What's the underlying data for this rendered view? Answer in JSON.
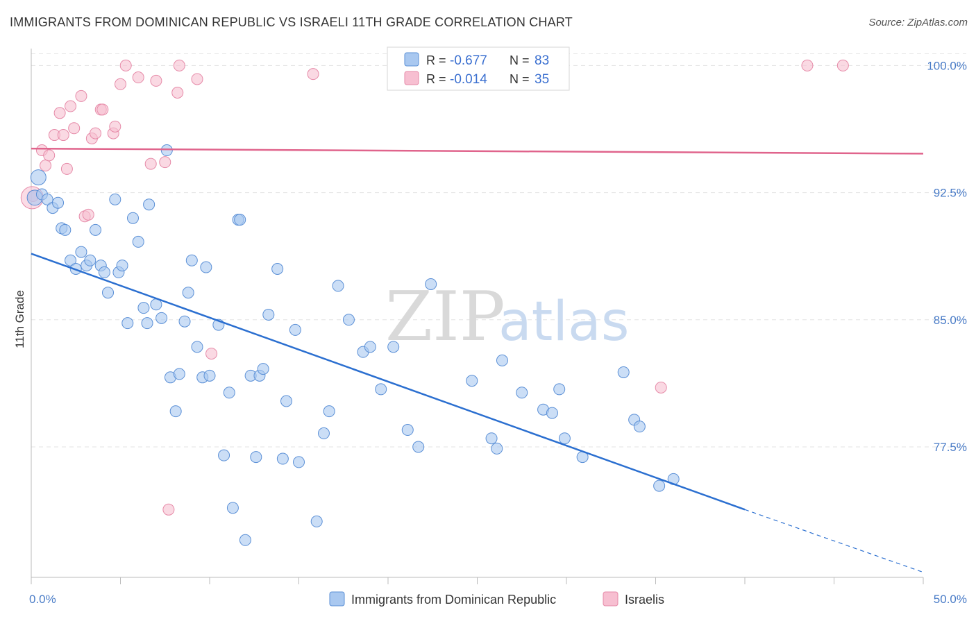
{
  "header": {
    "title": "IMMIGRANTS FROM DOMINICAN REPUBLIC VS ISRAELI 11TH GRADE CORRELATION CHART",
    "source": "Source: ZipAtlas.com"
  },
  "watermark": {
    "zip": "ZIP",
    "atlas": "atlas"
  },
  "legend": {
    "blue": {
      "r_label": "R =",
      "r_value": "-0.677",
      "n_label": "N =",
      "n_value": "83"
    },
    "pink": {
      "r_label": "R =",
      "r_value": "-0.014",
      "n_label": "N =",
      "n_value": "35"
    }
  },
  "colors": {
    "blue_fill": "#a9c8f0",
    "blue_stroke": "#5a8fd6",
    "blue_line": "#2b6fd0",
    "pink_fill": "#f7bfd1",
    "pink_stroke": "#e68aa8",
    "pink_line": "#e0648c",
    "grid": "#e3e3e3",
    "tick_label": "#4a7cc7"
  },
  "chart_data": {
    "type": "scatter",
    "title": "IMMIGRANTS FROM DOMINICAN REPUBLIC VS ISRAELI 11TH GRADE CORRELATION CHART",
    "xlabel": "",
    "ylabel": "11th Grade",
    "xlim": [
      0,
      50
    ],
    "ylim": [
      69.8,
      101
    ],
    "x_tick_labels": [
      "0.0%",
      "50.0%"
    ],
    "y_ticks": [
      77.5,
      85.0,
      92.5,
      100.0
    ],
    "y_tick_labels": [
      "77.5%",
      "85.0%",
      "92.5%",
      "100.0%"
    ],
    "legend_position": "top-center",
    "series": [
      {
        "name": "Immigrants from Dominican Republic",
        "color": "#a9c8f0",
        "trend": {
          "x": [
            0,
            40
          ],
          "y": [
            88.9,
            73.8
          ],
          "dashed_extension_to": [
            50,
            70.1
          ]
        },
        "points": [
          [
            0.2,
            92.2
          ],
          [
            0.4,
            93.4
          ],
          [
            0.6,
            92.4
          ],
          [
            0.9,
            92.1
          ],
          [
            1.2,
            91.6
          ],
          [
            1.5,
            91.9
          ],
          [
            1.7,
            90.4
          ],
          [
            1.9,
            90.3
          ],
          [
            2.2,
            88.5
          ],
          [
            2.5,
            88.0
          ],
          [
            2.8,
            89.0
          ],
          [
            3.1,
            88.2
          ],
          [
            3.3,
            88.5
          ],
          [
            3.6,
            90.3
          ],
          [
            3.9,
            88.2
          ],
          [
            4.1,
            87.8
          ],
          [
            4.3,
            86.6
          ],
          [
            4.7,
            92.1
          ],
          [
            4.9,
            87.8
          ],
          [
            5.1,
            88.2
          ],
          [
            5.4,
            84.8
          ],
          [
            5.7,
            91.0
          ],
          [
            6.0,
            89.6
          ],
          [
            6.3,
            85.7
          ],
          [
            6.5,
            84.8
          ],
          [
            6.6,
            91.8
          ],
          [
            7.0,
            85.9
          ],
          [
            7.3,
            85.1
          ],
          [
            7.6,
            95.0
          ],
          [
            7.8,
            81.6
          ],
          [
            8.1,
            79.6
          ],
          [
            8.3,
            81.8
          ],
          [
            8.6,
            84.9
          ],
          [
            8.8,
            86.6
          ],
          [
            9.0,
            88.5
          ],
          [
            9.3,
            83.4
          ],
          [
            9.6,
            81.6
          ],
          [
            9.8,
            88.1
          ],
          [
            10.0,
            81.7
          ],
          [
            10.5,
            84.7
          ],
          [
            10.8,
            77.0
          ],
          [
            11.1,
            80.7
          ],
          [
            11.3,
            73.9
          ],
          [
            11.6,
            90.9
          ],
          [
            11.7,
            90.9
          ],
          [
            12.0,
            72.0
          ],
          [
            12.3,
            81.7
          ],
          [
            12.6,
            76.9
          ],
          [
            12.8,
            81.7
          ],
          [
            13.0,
            82.1
          ],
          [
            13.3,
            85.3
          ],
          [
            13.8,
            88.0
          ],
          [
            14.1,
            76.8
          ],
          [
            14.3,
            80.2
          ],
          [
            14.8,
            84.4
          ],
          [
            15.0,
            76.6
          ],
          [
            16.0,
            73.1
          ],
          [
            16.4,
            78.3
          ],
          [
            16.7,
            79.6
          ],
          [
            17.2,
            87.0
          ],
          [
            17.8,
            85.0
          ],
          [
            18.6,
            83.1
          ],
          [
            19.0,
            83.4
          ],
          [
            19.6,
            80.9
          ],
          [
            20.3,
            83.4
          ],
          [
            21.1,
            78.5
          ],
          [
            21.7,
            77.5
          ],
          [
            22.4,
            87.1
          ],
          [
            24.7,
            81.4
          ],
          [
            25.8,
            78.0
          ],
          [
            26.1,
            77.4
          ],
          [
            26.4,
            82.6
          ],
          [
            27.5,
            80.7
          ],
          [
            28.7,
            79.7
          ],
          [
            29.2,
            79.5
          ],
          [
            29.6,
            80.9
          ],
          [
            29.9,
            78.0
          ],
          [
            30.9,
            76.9
          ],
          [
            33.2,
            81.9
          ],
          [
            33.8,
            79.1
          ],
          [
            34.1,
            78.7
          ],
          [
            35.2,
            75.2
          ],
          [
            36.0,
            75.6
          ]
        ]
      },
      {
        "name": "Israelis",
        "color": "#f7bfd1",
        "trend": {
          "x": [
            0,
            50
          ],
          "y": [
            95.1,
            94.8
          ]
        },
        "points": [
          [
            0.1,
            92.3
          ],
          [
            0.6,
            95.0
          ],
          [
            0.8,
            94.1
          ],
          [
            1.0,
            94.7
          ],
          [
            1.3,
            95.9
          ],
          [
            1.6,
            97.2
          ],
          [
            1.8,
            95.9
          ],
          [
            2.0,
            93.9
          ],
          [
            2.2,
            97.6
          ],
          [
            2.4,
            96.3
          ],
          [
            2.8,
            98.2
          ],
          [
            3.0,
            91.1
          ],
          [
            3.2,
            91.2
          ],
          [
            3.4,
            95.7
          ],
          [
            3.6,
            96.0
          ],
          [
            3.9,
            97.4
          ],
          [
            4.0,
            97.4
          ],
          [
            4.6,
            96.0
          ],
          [
            4.7,
            96.4
          ],
          [
            5.0,
            98.9
          ],
          [
            5.3,
            100.0
          ],
          [
            6.0,
            99.3
          ],
          [
            6.7,
            94.2
          ],
          [
            7.0,
            99.1
          ],
          [
            7.5,
            94.3
          ],
          [
            7.7,
            73.8
          ],
          [
            8.2,
            98.4
          ],
          [
            8.3,
            100.0
          ],
          [
            9.3,
            99.2
          ],
          [
            10.1,
            83.0
          ],
          [
            15.8,
            99.5
          ],
          [
            35.3,
            81.0
          ],
          [
            43.5,
            100.0
          ],
          [
            45.5,
            100.0
          ],
          [
            0.05,
            92.2
          ]
        ]
      }
    ]
  },
  "bottom_legend": {
    "blue_label": "Immigrants from Dominican Republic",
    "pink_label": "Israelis"
  }
}
